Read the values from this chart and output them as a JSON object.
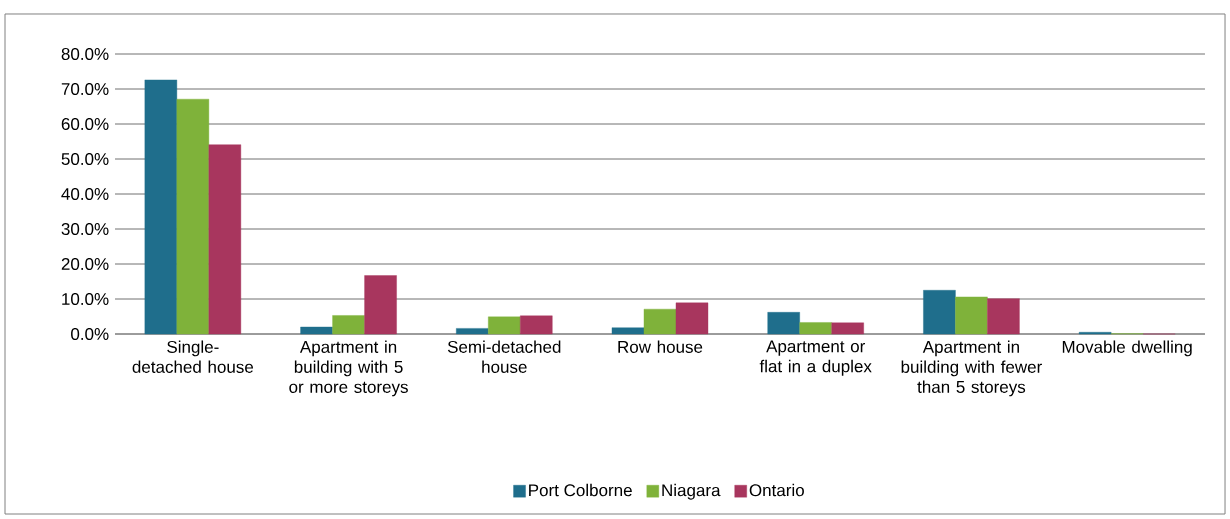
{
  "chart_data": {
    "type": "bar",
    "categories": [
      "Single-detached house",
      "Apartment in building with 5 or more storeys",
      "Semi-detached house",
      "Row house",
      "Apartment or flat in a duplex",
      "Apartment in building with fewer than 5 storeys",
      "Movable dwelling"
    ],
    "series": [
      {
        "name": "Port Colborne",
        "color": "#1f6e8c",
        "values": [
          72.6,
          2.0,
          1.6,
          1.8,
          6.2,
          12.5,
          0.5
        ]
      },
      {
        "name": "Niagara",
        "color": "#7fb23a",
        "values": [
          67.1,
          5.3,
          4.9,
          7.1,
          3.3,
          10.6,
          0.1
        ]
      },
      {
        "name": "Ontario",
        "color": "#a8365e",
        "values": [
          54.1,
          16.7,
          5.2,
          8.9,
          3.2,
          10.1,
          0.0
        ]
      }
    ],
    "ylim": [
      0,
      80
    ],
    "yticks": [
      {
        "value": 0,
        "label": "0.0%"
      },
      {
        "value": 10,
        "label": "10.0%"
      },
      {
        "value": 20,
        "label": "20.0%"
      },
      {
        "value": 30,
        "label": "30.0%"
      },
      {
        "value": 40,
        "label": "40.0%"
      },
      {
        "value": 50,
        "label": "50.0%"
      },
      {
        "value": 60,
        "label": "60.0%"
      },
      {
        "value": 70,
        "label": "70.0%"
      },
      {
        "value": 80,
        "label": "80.0%"
      }
    ],
    "grid": "y",
    "legend": "bottom"
  }
}
